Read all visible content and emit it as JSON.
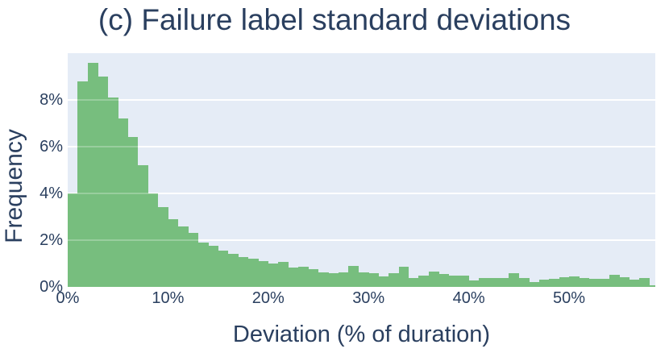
{
  "chart_data": {
    "type": "bar",
    "subtype": "histogram",
    "title": "(c) Failure label standard deviations",
    "xlabel": "Deviation (% of duration)",
    "ylabel": "Frequency",
    "xlim": [
      0,
      58.6
    ],
    "ylim": [
      0,
      10
    ],
    "grid": "on",
    "legend": "none",
    "bin_start": 0,
    "bin_width": 1,
    "values": [
      4.0,
      8.8,
      9.6,
      9.0,
      8.1,
      7.2,
      6.4,
      5.2,
      4.0,
      3.4,
      2.9,
      2.6,
      2.3,
      1.9,
      1.75,
      1.55,
      1.43,
      1.26,
      1.2,
      1.12,
      1.0,
      1.08,
      0.83,
      0.87,
      0.77,
      0.63,
      0.57,
      0.63,
      0.89,
      0.62,
      0.58,
      0.44,
      0.57,
      0.85,
      0.39,
      0.5,
      0.65,
      0.54,
      0.48,
      0.48,
      0.27,
      0.39,
      0.37,
      0.37,
      0.6,
      0.39,
      0.2,
      0.31,
      0.34,
      0.42,
      0.45,
      0.37,
      0.34,
      0.34,
      0.51,
      0.42,
      0.31,
      0.39,
      0.08
    ],
    "x_ticks": [
      {
        "value": 0,
        "label": "0%"
      },
      {
        "value": 10,
        "label": "10%"
      },
      {
        "value": 20,
        "label": "20%"
      },
      {
        "value": 30,
        "label": "30%"
      },
      {
        "value": 40,
        "label": "40%"
      },
      {
        "value": 50,
        "label": "50%"
      }
    ],
    "y_ticks": [
      {
        "value": 0,
        "label": "0%"
      },
      {
        "value": 2,
        "label": "2%"
      },
      {
        "value": 4,
        "label": "4%"
      },
      {
        "value": 6,
        "label": "6%"
      },
      {
        "value": 8,
        "label": "8%"
      }
    ],
    "grid_values": [
      2,
      4,
      6,
      8
    ],
    "colors": {
      "bar": "#77be7e",
      "plot_background": "#e5ecf6",
      "gridline": "#ffffff",
      "text": "#2a3f5f",
      "figure_background": "#ffffff"
    }
  }
}
